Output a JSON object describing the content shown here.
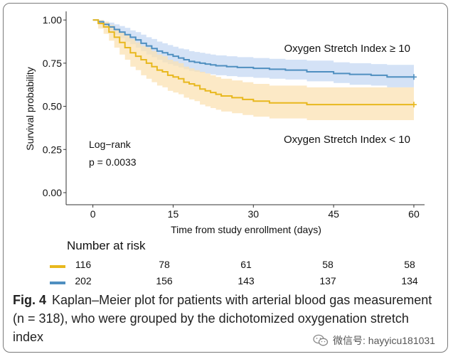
{
  "chart_data": {
    "type": "line",
    "subtype": "kaplan-meier",
    "xlabel": "Time from study enrollment (days)",
    "ylabel": "Survival probability",
    "xlim": [
      -5,
      62
    ],
    "ylim": [
      -0.07,
      1.05
    ],
    "xticks": [
      0,
      15,
      30,
      45,
      60
    ],
    "xtick_labels": [
      "0",
      "15",
      "30",
      "45",
      "60"
    ],
    "yticks": [
      0,
      0.25,
      0.5,
      0.75,
      1.0
    ],
    "ytick_labels": [
      "0.00",
      "0.25",
      "0.50",
      "0.75",
      "1.00"
    ],
    "grid": false,
    "series": [
      {
        "name": "Oxygen Stretch Index ≥ 10",
        "color": "#4f8fc0",
        "band_color": "#c6d8f3",
        "x": [
          0,
          1,
          2,
          3,
          4,
          5,
          6,
          7,
          8,
          9,
          10,
          11,
          12,
          13,
          14,
          15,
          16,
          17,
          18,
          19,
          20,
          21,
          22,
          23,
          25,
          27,
          30,
          33,
          36,
          40,
          45,
          48,
          52,
          55,
          60
        ],
        "y": [
          1.0,
          0.99,
          0.975,
          0.96,
          0.945,
          0.93,
          0.915,
          0.9,
          0.885,
          0.865,
          0.85,
          0.835,
          0.82,
          0.81,
          0.8,
          0.79,
          0.78,
          0.77,
          0.76,
          0.755,
          0.75,
          0.745,
          0.74,
          0.735,
          0.73,
          0.725,
          0.72,
          0.715,
          0.71,
          0.7,
          0.69,
          0.685,
          0.68,
          0.67,
          0.67
        ],
        "ci_lower": [
          1.0,
          0.975,
          0.955,
          0.935,
          0.915,
          0.895,
          0.875,
          0.86,
          0.84,
          0.82,
          0.8,
          0.785,
          0.77,
          0.755,
          0.745,
          0.735,
          0.725,
          0.715,
          0.705,
          0.7,
          0.695,
          0.69,
          0.685,
          0.68,
          0.675,
          0.67,
          0.665,
          0.66,
          0.655,
          0.645,
          0.635,
          0.625,
          0.62,
          0.61,
          0.6
        ],
        "ci_upper": [
          1.0,
          1.0,
          0.99,
          0.985,
          0.975,
          0.965,
          0.955,
          0.94,
          0.93,
          0.915,
          0.9,
          0.89,
          0.875,
          0.865,
          0.855,
          0.845,
          0.835,
          0.83,
          0.82,
          0.815,
          0.81,
          0.805,
          0.8,
          0.795,
          0.79,
          0.785,
          0.78,
          0.775,
          0.77,
          0.765,
          0.755,
          0.75,
          0.745,
          0.74,
          0.74
        ]
      },
      {
        "name": "Oxygen Stretch Index < 10",
        "color": "#e8b81e",
        "band_color": "#fbe2b3",
        "x": [
          0,
          1,
          2,
          3,
          4,
          5,
          6,
          7,
          8,
          9,
          10,
          11,
          12,
          13,
          14,
          15,
          16,
          17,
          18,
          19,
          20,
          21,
          22,
          23,
          24,
          25,
          26,
          27,
          28,
          29,
          30,
          31,
          33,
          35,
          40,
          45,
          50,
          55,
          60
        ],
        "y": [
          1.0,
          0.98,
          0.96,
          0.93,
          0.9,
          0.87,
          0.84,
          0.81,
          0.79,
          0.77,
          0.75,
          0.73,
          0.71,
          0.7,
          0.68,
          0.67,
          0.66,
          0.64,
          0.63,
          0.62,
          0.6,
          0.59,
          0.58,
          0.57,
          0.56,
          0.56,
          0.55,
          0.55,
          0.54,
          0.54,
          0.53,
          0.53,
          0.52,
          0.52,
          0.51,
          0.51,
          0.51,
          0.51,
          0.51
        ],
        "ci_lower": [
          1.0,
          0.95,
          0.92,
          0.88,
          0.84,
          0.8,
          0.77,
          0.73,
          0.71,
          0.68,
          0.66,
          0.64,
          0.62,
          0.61,
          0.59,
          0.58,
          0.57,
          0.55,
          0.54,
          0.53,
          0.51,
          0.5,
          0.49,
          0.48,
          0.47,
          0.47,
          0.46,
          0.46,
          0.45,
          0.45,
          0.44,
          0.44,
          0.43,
          0.43,
          0.42,
          0.42,
          0.42,
          0.42,
          0.41
        ],
        "ci_upper": [
          1.0,
          1.0,
          0.99,
          0.97,
          0.95,
          0.93,
          0.91,
          0.89,
          0.87,
          0.85,
          0.84,
          0.82,
          0.8,
          0.79,
          0.77,
          0.76,
          0.75,
          0.73,
          0.72,
          0.71,
          0.7,
          0.69,
          0.68,
          0.67,
          0.66,
          0.66,
          0.65,
          0.65,
          0.64,
          0.64,
          0.63,
          0.63,
          0.62,
          0.62,
          0.61,
          0.61,
          0.61,
          0.61,
          0.61
        ]
      }
    ],
    "annotations": {
      "high_label": "Oxygen Stretch Index ≥ 10",
      "low_label": "Oxygen Stretch Index < 10",
      "test_label": "Log−rank",
      "p_value": "p = 0.0033"
    }
  },
  "risk_table": {
    "title": "Number at risk",
    "times": [
      0,
      15,
      30,
      45,
      60
    ],
    "rows": [
      {
        "color": "#e8b81e",
        "values": [
          "116",
          "78",
          "61",
          "58",
          "58"
        ]
      },
      {
        "color": "#4f8fc0",
        "values": [
          "202",
          "156",
          "143",
          "137",
          "134"
        ]
      }
    ]
  },
  "caption": {
    "fig_label": "Fig. 4",
    "text": "Kaplan–Meier plot for patients with arterial blood gas measurement (n = 318), who were grouped by the dichotomized oxygenation stretch index"
  },
  "watermark": {
    "text": "微信号: hayyicu181031",
    "icon": "wechat-icon"
  }
}
